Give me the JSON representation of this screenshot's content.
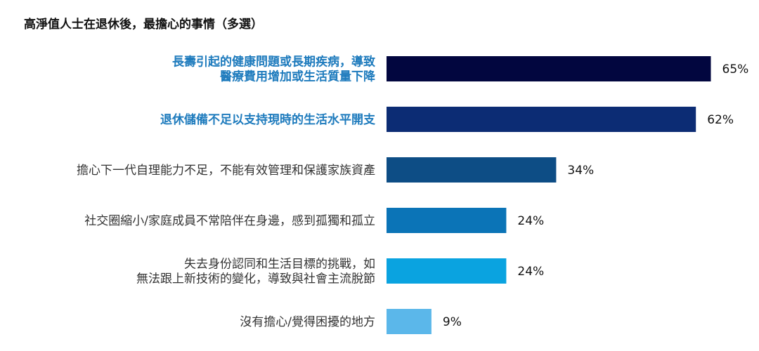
{
  "chart_data": {
    "type": "bar",
    "orientation": "horizontal",
    "title": "高淨值人士在退休後，最擔心的事情（多選）",
    "categories": [
      [
        "長壽引起的健康問題或長期疾病，導致",
        "醫療費用增加或生活質量下降"
      ],
      [
        "退休儲備不足以支持現時的生活水平開支"
      ],
      [
        "擔心下一代自理能力不足，不能有效管理和保護家族資產"
      ],
      [
        "社交圈縮小/家庭成員不常陪伴在身邊，感到孤獨和孤立"
      ],
      [
        "失去身份認同和生活目標的挑戰，如",
        "無法跟上新技術的變化，導致與社會主流脫節"
      ],
      [
        "沒有擔心/覺得困擾的地方"
      ]
    ],
    "values": [
      65,
      62,
      34,
      24,
      24,
      9
    ],
    "value_labels": [
      "65%",
      "62%",
      "34%",
      "24%",
      "24%",
      "9%"
    ],
    "highlighted": [
      true,
      true,
      false,
      false,
      false,
      false
    ],
    "bar_colors": [
      "#02063f",
      "#0c2c74",
      "#0d4d85",
      "#0b74b7",
      "#0aa3e0",
      "#5bb7ea"
    ],
    "label_colors": {
      "highlight": "#1e7bbd",
      "normal": "#333333"
    },
    "xlim": [
      0,
      100
    ],
    "grid": false,
    "legend": "none"
  }
}
